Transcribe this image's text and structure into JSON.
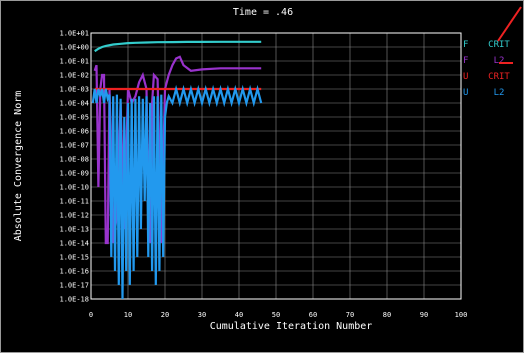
{
  "title": "Time = .46",
  "chart_data": {
    "type": "line",
    "xlabel": "Cumulative Iteration Number",
    "ylabel": "Absolute Convergence Norm",
    "xlim": [
      0,
      100
    ],
    "x_ticks": [
      "0",
      "10",
      "20",
      "30",
      "40",
      "50",
      "60",
      "70",
      "80",
      "90",
      "100"
    ],
    "x_tick_values": [
      0,
      10,
      20,
      30,
      40,
      50,
      60,
      70,
      80,
      90,
      100
    ],
    "y_log": true,
    "y_ticks": [
      "1.0E+01",
      "1.0E+00",
      "1.0E-01",
      "1.0E-02",
      "1.0E-03",
      "1.0E-04",
      "1.0E-05",
      "1.0E-06",
      "1.0E-07",
      "1.0E-08",
      "1.0E-09",
      "1.0E-10",
      "1.0E-11",
      "1.0E-12",
      "1.0E-13",
      "1.0E-14",
      "1.0E-15",
      "1.0E-16",
      "1.0E-17",
      "1.0E-18"
    ],
    "y_tick_exponents": [
      1,
      0,
      -1,
      -2,
      -3,
      -4,
      -5,
      -6,
      -7,
      -8,
      -9,
      -10,
      -11,
      -12,
      -13,
      -14,
      -15,
      -16,
      -17,
      -18
    ],
    "grid": true,
    "legend_position": "right",
    "series": [
      {
        "name": "CRIT",
        "field": "F",
        "color": "#33cccc",
        "x": [
          1,
          2,
          3,
          4,
          6,
          8,
          10,
          12,
          15,
          18,
          22,
          26,
          30,
          35,
          40,
          46
        ],
        "y": [
          0.5,
          0.75,
          1.0,
          1.2,
          1.5,
          1.7,
          1.9,
          2.0,
          2.1,
          2.2,
          2.25,
          2.3,
          2.3,
          2.35,
          2.35,
          2.35
        ]
      },
      {
        "name": "L2",
        "field": "F",
        "color": "#9933cc",
        "x": [
          1,
          1.5,
          2,
          2.5,
          3,
          3.5,
          4,
          4.5,
          5,
          6,
          7,
          8,
          9,
          10,
          11,
          12,
          13,
          14,
          15,
          15.5,
          16,
          16.5,
          17,
          18,
          19,
          20,
          21,
          22,
          23,
          24,
          25,
          27,
          30,
          35,
          40,
          46
        ],
        "y": [
          0.02,
          0.05,
          1e-10,
          0.001,
          0.01,
          0.01,
          1e-14,
          1e-14,
          0.001,
          1e-14,
          1e-12,
          0.0001,
          1e-13,
          0.001,
          0.0001,
          0.0003,
          0.003,
          0.01,
          0.001,
          1e-12,
          1e-14,
          0.0001,
          0.01,
          0.005,
          1e-14,
          0.001,
          0.01,
          0.05,
          0.15,
          0.2,
          0.05,
          0.02,
          0.025,
          0.03,
          0.03,
          0.03
        ]
      },
      {
        "name": "CRIT",
        "field": "U",
        "color": "#ee2222",
        "x": [
          1,
          46
        ],
        "y": [
          0.001,
          0.001
        ]
      },
      {
        "name": "L2",
        "field": "U",
        "color": "#2299ee",
        "x": [
          0.5,
          1,
          1.5,
          2,
          2.5,
          3,
          3.5,
          4,
          4.5,
          5,
          5.5,
          6,
          6.5,
          7,
          7.5,
          8,
          8.5,
          9,
          9.5,
          10,
          10.5,
          11,
          11.5,
          12,
          12.5,
          13,
          13.5,
          14,
          14.5,
          15,
          15.5,
          16,
          16.5,
          17,
          17.5,
          18,
          18.5,
          19,
          19.5,
          20,
          20.5,
          21,
          22,
          23,
          24,
          25,
          26,
          27,
          28,
          29,
          30,
          31,
          32,
          33,
          34,
          35,
          36,
          37,
          38,
          39,
          40,
          41,
          42,
          43,
          44,
          45,
          46
        ],
        "y": [
          0.0001,
          0.001,
          0.0001,
          0.001,
          0.0003,
          0.001,
          0.0001,
          0.001,
          0.0002,
          0.0004,
          1e-15,
          0.0003,
          1e-16,
          0.0004,
          1e-17,
          0.0002,
          1e-18,
          1e-05,
          1e-16,
          0.0001,
          1e-17,
          0.0002,
          1e-16,
          0.0002,
          1e-15,
          0.0003,
          1e-13,
          0.0002,
          1e-11,
          0.0003,
          1e-15,
          0.0001,
          1e-16,
          0.0003,
          1e-17,
          0.0003,
          1e-16,
          0.0004,
          1e-15,
          1e-05,
          0.0001,
          0.0003,
          0.0001,
          0.001,
          0.0001,
          0.001,
          0.0001,
          0.001,
          0.0001,
          0.001,
          0.0001,
          0.001,
          0.0001,
          0.001,
          0.0001,
          0.001,
          0.0001,
          0.001,
          0.0001,
          0.001,
          0.0001,
          0.001,
          0.0001,
          0.001,
          0.0001,
          0.001,
          0.0001
        ]
      }
    ]
  }
}
